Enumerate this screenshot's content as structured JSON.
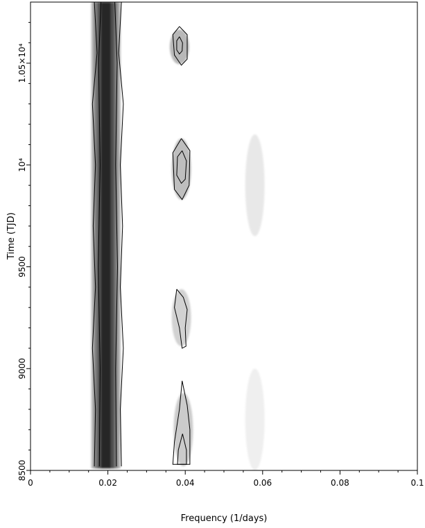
{
  "chart_data": {
    "type": "heatmap",
    "title": "",
    "xlabel": "Frequency (1/days)",
    "ylabel": "Time (TJD)",
    "xlim": [
      0,
      0.1
    ],
    "ylim": [
      8500,
      10800
    ],
    "colormap": "grayscale (dark = high power)",
    "x_ticks": [
      {
        "value": 0,
        "label": "0"
      },
      {
        "value": 0.02,
        "label": "0.02"
      },
      {
        "value": 0.04,
        "label": "0.04"
      },
      {
        "value": 0.06,
        "label": "0.06"
      },
      {
        "value": 0.08,
        "label": "0.08"
      },
      {
        "value": 0.1,
        "label": "0.1"
      }
    ],
    "y_ticks": [
      {
        "value": 8500,
        "label": "8500"
      },
      {
        "value": 9000,
        "label": "9000"
      },
      {
        "value": 9500,
        "label": "9500"
      },
      {
        "value": 10000,
        "label": "10⁴"
      },
      {
        "value": 10500,
        "label": "1.05×10⁴"
      }
    ],
    "features": [
      {
        "name": "main ridge",
        "frequency_center": 0.0195,
        "frequency_halfwidth": 0.0035,
        "time_range": [
          8510,
          10800
        ],
        "intensity": 1.0
      },
      {
        "name": "harmonic blob A",
        "frequency_center": 0.0385,
        "time_center": 10580,
        "time_halfextent": 85,
        "intensity": 0.55
      },
      {
        "name": "harmonic blob B",
        "frequency_center": 0.039,
        "time_center": 9980,
        "time_halfextent": 150,
        "intensity": 0.5
      },
      {
        "name": "harmonic blob C",
        "frequency_center": 0.039,
        "time_center": 9250,
        "time_halfextent": 140,
        "intensity": 0.35
      },
      {
        "name": "harmonic blob D",
        "frequency_center": 0.0395,
        "time_center": 8700,
        "time_halfextent": 180,
        "intensity": 0.4
      },
      {
        "name": "faint streak",
        "frequency_center": 0.058,
        "time_center": 9900,
        "time_halfextent": 250,
        "intensity": 0.18
      },
      {
        "name": "faint streak",
        "frequency_center": 0.058,
        "time_center": 8750,
        "time_halfextent": 250,
        "intensity": 0.12
      }
    ],
    "contours": [
      {
        "name": "ridge outer",
        "points": [
          [
            0.0165,
            8520
          ],
          [
            0.0168,
            8800
          ],
          [
            0.016,
            9100
          ],
          [
            0.0168,
            9400
          ],
          [
            0.0162,
            9700
          ],
          [
            0.0168,
            10000
          ],
          [
            0.016,
            10300
          ],
          [
            0.0172,
            10550
          ],
          [
            0.0165,
            10800
          ]
        ]
      },
      {
        "name": "ridge outer",
        "points": [
          [
            0.0235,
            8520
          ],
          [
            0.0232,
            8800
          ],
          [
            0.024,
            9100
          ],
          [
            0.0232,
            9400
          ],
          [
            0.0238,
            9700
          ],
          [
            0.0232,
            10000
          ],
          [
            0.024,
            10300
          ],
          [
            0.0228,
            10550
          ],
          [
            0.0235,
            10800
          ]
        ]
      },
      {
        "name": "ridge inner",
        "points": [
          [
            0.0178,
            8520
          ],
          [
            0.018,
            9000
          ],
          [
            0.0175,
            9500
          ],
          [
            0.018,
            10000
          ],
          [
            0.0176,
            10500
          ],
          [
            0.0182,
            10800
          ]
        ]
      },
      {
        "name": "ridge inner",
        "points": [
          [
            0.0222,
            8520
          ],
          [
            0.022,
            9000
          ],
          [
            0.0225,
            9500
          ],
          [
            0.022,
            10000
          ],
          [
            0.0224,
            10500
          ],
          [
            0.0218,
            10800
          ]
        ]
      },
      {
        "name": "blob A outer",
        "points": [
          [
            0.0385,
            10680
          ],
          [
            0.0405,
            10640
          ],
          [
            0.0405,
            10520
          ],
          [
            0.039,
            10490
          ],
          [
            0.0372,
            10540
          ],
          [
            0.0368,
            10640
          ],
          [
            0.0385,
            10680
          ]
        ]
      },
      {
        "name": "blob A inner",
        "points": [
          [
            0.0385,
            10630
          ],
          [
            0.0393,
            10600
          ],
          [
            0.0392,
            10560
          ],
          [
            0.0385,
            10545
          ],
          [
            0.0378,
            10565
          ],
          [
            0.0378,
            10610
          ],
          [
            0.0385,
            10630
          ]
        ]
      },
      {
        "name": "blob B outer",
        "points": [
          [
            0.039,
            10130
          ],
          [
            0.0412,
            10070
          ],
          [
            0.041,
            9900
          ],
          [
            0.0392,
            9830
          ],
          [
            0.0372,
            9880
          ],
          [
            0.0368,
            10060
          ],
          [
            0.039,
            10130
          ]
        ]
      },
      {
        "name": "blob B inner",
        "points": [
          [
            0.0392,
            10070
          ],
          [
            0.0403,
            10020
          ],
          [
            0.04,
            9930
          ],
          [
            0.039,
            9910
          ],
          [
            0.0378,
            9950
          ],
          [
            0.038,
            10040
          ],
          [
            0.0392,
            10070
          ]
        ]
      },
      {
        "name": "blob C",
        "points": [
          [
            0.0378,
            9390
          ],
          [
            0.0395,
            9350
          ],
          [
            0.0405,
            9290
          ],
          [
            0.04,
            9200
          ],
          [
            0.0402,
            9110
          ],
          [
            0.0392,
            9100
          ],
          [
            0.0385,
            9200
          ],
          [
            0.0372,
            9300
          ],
          [
            0.0378,
            9390
          ]
        ]
      },
      {
        "name": "blob D outer",
        "points": [
          [
            0.0392,
            8940
          ],
          [
            0.0405,
            8820
          ],
          [
            0.0412,
            8700
          ],
          [
            0.0412,
            8530
          ],
          [
            0.0368,
            8530
          ],
          [
            0.0372,
            8640
          ],
          [
            0.0385,
            8800
          ],
          [
            0.0392,
            8940
          ]
        ]
      },
      {
        "name": "blob D inner",
        "points": [
          [
            0.0393,
            8680
          ],
          [
            0.0403,
            8600
          ],
          [
            0.0403,
            8530
          ],
          [
            0.038,
            8530
          ],
          [
            0.0382,
            8600
          ],
          [
            0.0393,
            8680
          ]
        ]
      }
    ]
  }
}
